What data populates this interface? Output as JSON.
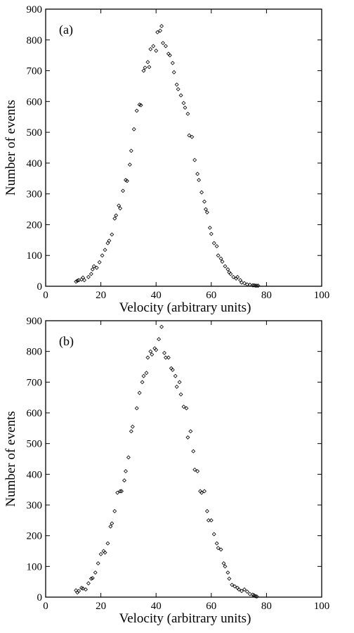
{
  "chart_data": [
    {
      "type": "scatter",
      "panel_label": "(a)",
      "xlabel": "Velocity (arbitrary units)",
      "ylabel": "Number of events",
      "xlim": [
        0,
        100
      ],
      "ylim": [
        0,
        900
      ],
      "xticks": [
        0,
        20,
        40,
        60,
        80,
        100
      ],
      "yticks": [
        0,
        100,
        200,
        300,
        400,
        500,
        600,
        700,
        800,
        900
      ],
      "grid": false,
      "marker": "open-diamond",
      "series": [
        {
          "x": [
            11.0,
            11.5,
            12.0,
            13.0,
            13.5,
            14.0,
            15.5,
            16.5,
            17.0,
            17.5,
            18.5,
            19.5,
            20.5,
            21.5,
            22.5,
            23.0,
            24.0,
            25.0,
            25.5,
            26.5,
            27.0,
            28.0,
            29.0,
            29.5,
            30.5,
            31.0,
            32.0,
            33.0,
            34.0,
            34.5,
            35.5,
            36.0,
            37.0,
            37.5,
            38.0,
            39.0,
            40.0,
            40.5,
            41.5,
            42.0,
            42.5,
            43.5,
            44.5,
            45.0,
            46.0,
            46.5,
            47.5,
            48.0,
            49.0,
            50.0,
            50.5,
            51.5,
            52.0,
            53.0,
            54.0,
            55.0,
            55.5,
            56.5,
            57.5,
            58.0,
            58.5,
            59.5,
            60.0,
            61.0,
            62.0,
            62.5,
            63.5,
            64.0,
            65.0,
            66.0,
            66.5,
            67.0,
            68.0,
            69.0,
            69.5,
            70.5,
            71.0,
            72.0,
            73.0,
            74.0,
            75.0,
            75.5,
            76.0,
            76.5,
            77.0
          ],
          "y": [
            15,
            18,
            20,
            22,
            28,
            20,
            30,
            40,
            55,
            65,
            60,
            78,
            100,
            118,
            140,
            148,
            168,
            220,
            230,
            262,
            253,
            310,
            345,
            342,
            395,
            440,
            510,
            570,
            590,
            588,
            700,
            710,
            728,
            712,
            770,
            780,
            765,
            825,
            830,
            845,
            790,
            780,
            755,
            750,
            725,
            695,
            655,
            640,
            620,
            595,
            580,
            560,
            490,
            485,
            410,
            365,
            345,
            305,
            275,
            250,
            240,
            190,
            170,
            140,
            130,
            100,
            90,
            80,
            65,
            55,
            45,
            40,
            30,
            25,
            30,
            20,
            12,
            10,
            6,
            5,
            3,
            3,
            2,
            2,
            2
          ]
        }
      ]
    },
    {
      "type": "scatter",
      "panel_label": "(b)",
      "xlabel": "Velocity (arbitrary units)",
      "ylabel": "Number of events",
      "xlim": [
        0,
        100
      ],
      "ylim": [
        0,
        900
      ],
      "xticks": [
        0,
        20,
        40,
        60,
        80,
        100
      ],
      "yticks": [
        0,
        100,
        200,
        300,
        400,
        500,
        600,
        700,
        800,
        900
      ],
      "grid": false,
      "marker": "open-diamond",
      "series": [
        {
          "x": [
            11.0,
            11.5,
            12.0,
            13.0,
            13.5,
            14.5,
            15.5,
            16.5,
            17.0,
            18.0,
            19.0,
            20.0,
            21.0,
            21.5,
            22.5,
            23.5,
            24.0,
            25.0,
            26.0,
            27.0,
            27.5,
            28.5,
            29.0,
            30.0,
            31.0,
            31.5,
            33.0,
            34.0,
            35.0,
            35.5,
            36.5,
            37.0,
            38.0,
            38.5,
            39.5,
            40.0,
            41.0,
            42.0,
            43.0,
            43.5,
            44.5,
            45.5,
            46.0,
            47.0,
            47.5,
            48.5,
            49.0,
            50.0,
            51.0,
            51.5,
            52.5,
            53.5,
            54.0,
            55.0,
            56.0,
            56.5,
            57.5,
            58.5,
            59.0,
            60.0,
            61.0,
            62.0,
            62.5,
            63.5,
            64.5,
            65.0,
            66.0,
            66.5,
            67.5,
            68.5,
            69.5,
            70.0,
            71.0,
            72.0,
            73.0,
            74.0,
            75.0,
            75.5,
            76.0,
            76.5
          ],
          "y": [
            22,
            15,
            20,
            30,
            28,
            25,
            45,
            60,
            62,
            80,
            110,
            140,
            150,
            145,
            175,
            230,
            240,
            280,
            340,
            345,
            345,
            380,
            410,
            455,
            540,
            555,
            615,
            665,
            700,
            720,
            730,
            780,
            800,
            790,
            810,
            805,
            840,
            880,
            795,
            780,
            780,
            745,
            740,
            720,
            685,
            700,
            660,
            620,
            615,
            520,
            540,
            475,
            415,
            410,
            345,
            340,
            345,
            280,
            250,
            250,
            205,
            175,
            160,
            155,
            110,
            100,
            80,
            60,
            40,
            35,
            30,
            25,
            20,
            25,
            18,
            10,
            8,
            6,
            3,
            2
          ]
        }
      ]
    }
  ]
}
